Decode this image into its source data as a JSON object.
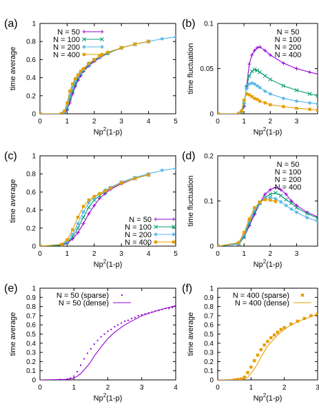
{
  "colors": {
    "N50": "#9400d3",
    "N100": "#009e73",
    "N200": "#56b4e9",
    "N400": "#e69f00"
  },
  "chart_data": [
    {
      "id": "a",
      "panel_label": "(a)",
      "type": "line",
      "xlabel": "Np",
      "xlabel_sup": "2",
      "xlabel_tail": "(1-p)",
      "ylabel": "time average",
      "xlim": [
        0,
        5
      ],
      "ylim": [
        0,
        1
      ],
      "xticks": [
        "0",
        "1",
        "2",
        "3",
        "4",
        "5"
      ],
      "yticks": [
        "0",
        "0.2",
        "0.4",
        "0.6",
        "0.8",
        "1"
      ],
      "legend_position": "top-left",
      "series": [
        {
          "name": "N = 50",
          "color": "#9400d3",
          "marker": "plus",
          "x": [
            0,
            0.8,
            0.9,
            1.0,
            1.1,
            1.2,
            1.3,
            1.4,
            1.5,
            1.6,
            1.8,
            2.0,
            2.2,
            2.5,
            3.0,
            3.5,
            4.0
          ],
          "y": [
            0,
            0,
            0.01,
            0.04,
            0.12,
            0.22,
            0.3,
            0.37,
            0.42,
            0.47,
            0.53,
            0.58,
            0.62,
            0.67,
            0.73,
            0.77,
            0.8
          ]
        },
        {
          "name": "N = 100",
          "color": "#009e73",
          "marker": "x",
          "x": [
            0,
            0.8,
            0.9,
            1.0,
            1.1,
            1.2,
            1.3,
            1.4,
            1.5,
            1.6,
            1.8,
            2.0,
            2.2,
            2.5,
            3.0,
            3.5,
            4.0
          ],
          "y": [
            0,
            0,
            0.01,
            0.06,
            0.16,
            0.25,
            0.33,
            0.39,
            0.44,
            0.48,
            0.54,
            0.59,
            0.63,
            0.67,
            0.73,
            0.77,
            0.8
          ]
        },
        {
          "name": "N = 200",
          "color": "#56b4e9",
          "marker": "star",
          "x": [
            0,
            0.8,
            0.9,
            1.0,
            1.1,
            1.2,
            1.3,
            1.4,
            1.5,
            1.6,
            1.8,
            2.0,
            2.2,
            2.5,
            3.0,
            3.5,
            4.0,
            4.5,
            5.0
          ],
          "y": [
            0,
            0,
            0.02,
            0.08,
            0.2,
            0.29,
            0.36,
            0.41,
            0.45,
            0.49,
            0.55,
            0.6,
            0.63,
            0.68,
            0.73,
            0.77,
            0.8,
            0.83,
            0.85
          ]
        },
        {
          "name": "N = 400",
          "color": "#e69f00",
          "marker": "square",
          "x": [
            0,
            0.8,
            0.9,
            1.0,
            1.1,
            1.2,
            1.3,
            1.4,
            1.5,
            1.6,
            1.8,
            2.0,
            2.2,
            2.5,
            3.0,
            3.5,
            4.0
          ],
          "y": [
            0,
            0,
            0.03,
            0.12,
            0.25,
            0.33,
            0.39,
            0.43,
            0.47,
            0.5,
            0.56,
            0.6,
            0.64,
            0.68,
            0.73,
            0.77,
            0.8
          ]
        }
      ]
    },
    {
      "id": "b",
      "panel_label": "(b)",
      "type": "line",
      "xlabel": "Np",
      "xlabel_sup": "2",
      "xlabel_tail": "(1-p)",
      "ylabel": "time fluctuation",
      "xlim": [
        0,
        3.8
      ],
      "ylim": [
        0,
        0.1
      ],
      "xticks": [
        "0",
        "1",
        "2",
        "3"
      ],
      "yticks": [
        "0",
        "0.05",
        "0.1"
      ],
      "legend_position": "top-right",
      "legend_style": "text",
      "series": [
        {
          "name": "N = 50",
          "color": "#9400d3",
          "marker": "plus",
          "x": [
            0,
            0.8,
            0.9,
            1.0,
            1.1,
            1.2,
            1.3,
            1.4,
            1.5,
            1.6,
            1.8,
            2.0,
            2.5,
            3.0,
            3.5,
            3.8
          ],
          "y": [
            0,
            0,
            0.001,
            0.008,
            0.03,
            0.055,
            0.065,
            0.07,
            0.073,
            0.074,
            0.07,
            0.065,
            0.056,
            0.05,
            0.046,
            0.044
          ]
        },
        {
          "name": "N = 100",
          "color": "#009e73",
          "marker": "x",
          "x": [
            0,
            0.8,
            0.9,
            1.0,
            1.1,
            1.2,
            1.3,
            1.4,
            1.5,
            1.6,
            1.8,
            2.0,
            2.5,
            3.0,
            3.5,
            3.8
          ],
          "y": [
            0,
            0,
            0.001,
            0.01,
            0.03,
            0.042,
            0.047,
            0.049,
            0.048,
            0.046,
            0.042,
            0.038,
            0.031,
            0.026,
            0.022,
            0.02
          ]
        },
        {
          "name": "N = 200",
          "color": "#56b4e9",
          "marker": "star",
          "x": [
            0,
            0.8,
            0.9,
            1.0,
            1.1,
            1.2,
            1.3,
            1.4,
            1.5,
            1.6,
            1.8,
            2.0,
            2.5,
            3.0,
            3.5,
            3.8
          ],
          "y": [
            0,
            0,
            0.002,
            0.012,
            0.028,
            0.033,
            0.034,
            0.033,
            0.031,
            0.029,
            0.025,
            0.022,
            0.017,
            0.014,
            0.012,
            0.011
          ]
        },
        {
          "name": "N = 400",
          "color": "#e69f00",
          "marker": "square",
          "x": [
            0,
            0.8,
            0.9,
            1.0,
            1.1,
            1.2,
            1.3,
            1.4,
            1.5,
            1.6,
            1.8,
            2.0,
            2.5,
            3.0,
            3.5,
            3.8
          ],
          "y": [
            0,
            0,
            0.003,
            0.015,
            0.022,
            0.021,
            0.019,
            0.017,
            0.016,
            0.014,
            0.012,
            0.01,
            0.008,
            0.006,
            0.005,
            0.004
          ]
        }
      ]
    },
    {
      "id": "c",
      "panel_label": "(c)",
      "type": "line",
      "xlabel": "Np",
      "xlabel_sup": "2",
      "xlabel_tail": "(1-p)",
      "ylabel": "time average",
      "xlim": [
        0,
        5
      ],
      "ylim": [
        0,
        1
      ],
      "xticks": [
        "0",
        "1",
        "2",
        "3",
        "4",
        "5"
      ],
      "yticks": [
        "0",
        "0.2",
        "0.4",
        "0.6",
        "0.8",
        "1"
      ],
      "legend_position": "bottom-right",
      "series": [
        {
          "name": "N = 50",
          "color": "#9400d3",
          "marker": "plus",
          "x": [
            0,
            0.8,
            1.0,
            1.2,
            1.4,
            1.6,
            1.8,
            2.0,
            2.2,
            2.4,
            2.6,
            3.0,
            3.5,
            4.0
          ],
          "y": [
            0,
            0.01,
            0.03,
            0.08,
            0.15,
            0.25,
            0.36,
            0.45,
            0.53,
            0.58,
            0.63,
            0.69,
            0.75,
            0.79
          ]
        },
        {
          "name": "N = 100",
          "color": "#009e73",
          "marker": "x",
          "x": [
            0,
            0.8,
            1.0,
            1.2,
            1.4,
            1.6,
            1.8,
            2.0,
            2.2,
            2.4,
            2.6,
            3.0,
            3.5,
            4.0
          ],
          "y": [
            0,
            0.01,
            0.04,
            0.1,
            0.2,
            0.32,
            0.43,
            0.51,
            0.56,
            0.6,
            0.64,
            0.7,
            0.75,
            0.79
          ]
        },
        {
          "name": "N = 200",
          "color": "#56b4e9",
          "marker": "star",
          "x": [
            0,
            0.8,
            1.0,
            1.2,
            1.4,
            1.6,
            1.8,
            2.0,
            2.2,
            2.4,
            2.6,
            3.0,
            3.5,
            4.0,
            4.5,
            5.0
          ],
          "y": [
            0,
            0.02,
            0.05,
            0.13,
            0.25,
            0.38,
            0.48,
            0.54,
            0.58,
            0.62,
            0.65,
            0.71,
            0.76,
            0.8,
            0.84,
            0.86
          ]
        },
        {
          "name": "N = 400",
          "color": "#e69f00",
          "marker": "square",
          "x": [
            0,
            0.8,
            1.0,
            1.2,
            1.4,
            1.6,
            1.8,
            2.0,
            2.2,
            2.4,
            2.6,
            3.0,
            3.5,
            4.0
          ],
          "y": [
            0,
            0.02,
            0.07,
            0.18,
            0.32,
            0.44,
            0.51,
            0.55,
            0.58,
            0.61,
            0.64,
            0.7,
            0.75,
            0.79
          ]
        }
      ]
    },
    {
      "id": "d",
      "panel_label": "(d)",
      "type": "line",
      "xlabel": "Np",
      "xlabel_sup": "2",
      "xlabel_tail": "(1-p)",
      "ylabel": "time fluctuation",
      "xlim": [
        0,
        3.8
      ],
      "ylim": [
        0,
        0.2
      ],
      "xticks": [
        "0",
        "1",
        "2",
        "3"
      ],
      "yticks": [
        "0",
        "0.1",
        "0.2"
      ],
      "legend_position": "top-right",
      "legend_style": "text",
      "series": [
        {
          "name": "N = 50",
          "color": "#9400d3",
          "marker": "plus",
          "x": [
            0,
            0.8,
            1.0,
            1.2,
            1.4,
            1.6,
            1.8,
            2.0,
            2.2,
            2.4,
            2.6,
            2.8,
            3.0,
            3.4,
            3.8
          ],
          "y": [
            0,
            0.005,
            0.02,
            0.045,
            0.07,
            0.095,
            0.115,
            0.125,
            0.13,
            0.125,
            0.115,
            0.1,
            0.09,
            0.075,
            0.065
          ]
        },
        {
          "name": "N = 100",
          "color": "#009e73",
          "marker": "x",
          "x": [
            0,
            0.8,
            1.0,
            1.2,
            1.4,
            1.6,
            1.8,
            2.0,
            2.2,
            2.4,
            2.6,
            2.8,
            3.0,
            3.4,
            3.8
          ],
          "y": [
            0,
            0.005,
            0.02,
            0.05,
            0.075,
            0.095,
            0.108,
            0.115,
            0.118,
            0.112,
            0.103,
            0.095,
            0.085,
            0.072,
            0.062
          ]
        },
        {
          "name": "N = 200",
          "color": "#56b4e9",
          "marker": "star",
          "x": [
            0,
            0.8,
            1.0,
            1.2,
            1.4,
            1.6,
            1.8,
            2.0,
            2.2,
            2.4,
            2.6,
            2.8,
            3.0,
            3.4,
            3.8
          ],
          "y": [
            0,
            0.006,
            0.025,
            0.055,
            0.08,
            0.097,
            0.105,
            0.108,
            0.105,
            0.098,
            0.09,
            0.082,
            0.075,
            0.063,
            0.055
          ]
        },
        {
          "name": "N = 400",
          "color": "#e69f00",
          "marker": "square",
          "x": [
            0,
            0.8,
            1.0,
            1.2,
            1.4,
            1.6,
            1.8,
            2.0,
            2.2
          ],
          "y": [
            0,
            0.008,
            0.03,
            0.06,
            0.085,
            0.098,
            0.103,
            0.102,
            0.099
          ]
        }
      ]
    },
    {
      "id": "e",
      "panel_label": "(e)",
      "type": "line",
      "xlabel": "Np",
      "xlabel_sup": "2",
      "xlabel_tail": "(1-p)",
      "ylabel": "time average",
      "xlim": [
        0,
        4
      ],
      "ylim": [
        0,
        1
      ],
      "xticks": [
        "0",
        "1",
        "2",
        "3",
        "4"
      ],
      "yticks": [
        "0",
        "0.1",
        "0.2",
        "0.3",
        "0.4",
        "0.5",
        "0.6",
        "0.7",
        "0.8",
        "0.9",
        "1"
      ],
      "legend_position": "top-right",
      "series": [
        {
          "name": "N = 50 (sparse)",
          "color": "#9400d3",
          "marker": "dot",
          "line": false,
          "x": [
            0,
            0.6,
            0.8,
            0.9,
            1.0,
            1.1,
            1.2,
            1.3,
            1.4,
            1.5,
            1.6,
            1.7,
            1.8,
            1.9,
            2.0,
            2.1,
            2.2,
            2.3,
            2.4,
            2.5,
            2.6,
            2.7,
            2.8,
            2.9,
            3.0,
            3.1,
            3.2,
            3.3,
            3.4,
            3.5,
            3.6,
            3.7,
            3.8,
            3.9,
            4.0
          ],
          "y": [
            0,
            0.005,
            0.01,
            0.02,
            0.04,
            0.09,
            0.16,
            0.23,
            0.29,
            0.34,
            0.39,
            0.43,
            0.47,
            0.5,
            0.53,
            0.55,
            0.58,
            0.6,
            0.62,
            0.64,
            0.65,
            0.67,
            0.68,
            0.7,
            0.71,
            0.72,
            0.73,
            0.74,
            0.75,
            0.76,
            0.77,
            0.78,
            0.78,
            0.79,
            0.8
          ]
        },
        {
          "name": "N = 50 (dense)",
          "color": "#9400d3",
          "marker": "none",
          "line": true,
          "x": [
            0,
            0.8,
            1.0,
            1.1,
            1.2,
            1.3,
            1.4,
            1.5,
            1.6,
            1.8,
            2.0,
            2.2,
            2.5,
            2.8,
            3.0,
            3.5,
            4.0
          ],
          "y": [
            0,
            0.005,
            0.02,
            0.04,
            0.07,
            0.11,
            0.15,
            0.2,
            0.26,
            0.36,
            0.45,
            0.52,
            0.6,
            0.66,
            0.7,
            0.76,
            0.81
          ]
        }
      ]
    },
    {
      "id": "f",
      "panel_label": "(f)",
      "type": "line",
      "xlabel": "Np",
      "xlabel_sup": "2",
      "xlabel_tail": "(1-p)",
      "ylabel": "time average",
      "xlim": [
        0,
        3
      ],
      "ylim": [
        0,
        1
      ],
      "xticks": [
        "0",
        "1",
        "2",
        "3"
      ],
      "yticks": [
        "0",
        "0.1",
        "0.2",
        "0.3",
        "0.4",
        "0.5",
        "0.6",
        "0.7",
        "0.8",
        "0.9",
        "1"
      ],
      "legend_position": "top-right",
      "series": [
        {
          "name": "N = 400 (sparse)",
          "color": "#e69f00",
          "marker": "square",
          "line": false,
          "x": [
            0.5,
            0.6,
            0.7,
            0.8,
            0.9,
            1.0,
            1.1,
            1.2,
            1.3,
            1.4,
            1.5,
            1.6,
            1.7,
            1.8,
            1.9,
            2.0,
            2.2,
            2.4,
            2.6,
            2.8,
            3.0
          ],
          "y": [
            0,
            0.005,
            0.01,
            0.03,
            0.08,
            0.14,
            0.21,
            0.27,
            0.33,
            0.38,
            0.42,
            0.46,
            0.49,
            0.52,
            0.55,
            0.57,
            0.61,
            0.64,
            0.67,
            0.7,
            0.72
          ]
        },
        {
          "name": "N = 400 (dense)",
          "color": "#e69f00",
          "marker": "none",
          "line": true,
          "x": [
            0,
            0.7,
            0.8,
            0.9,
            1.0,
            1.1,
            1.2,
            1.3,
            1.4,
            1.5,
            1.6,
            1.8,
            2.0,
            2.2,
            2.5,
            2.8,
            3.0
          ],
          "y": [
            0,
            0.005,
            0.01,
            0.03,
            0.07,
            0.12,
            0.18,
            0.25,
            0.31,
            0.37,
            0.41,
            0.49,
            0.55,
            0.6,
            0.65,
            0.69,
            0.72
          ]
        }
      ]
    }
  ]
}
